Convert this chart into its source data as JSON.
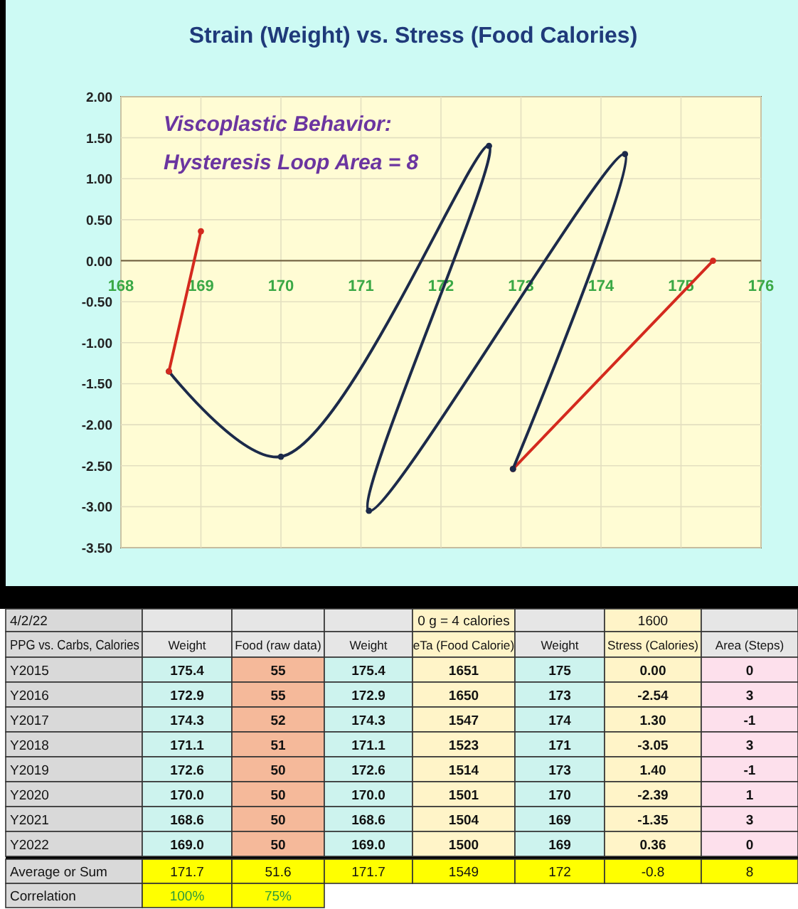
{
  "chart_data": [
    {
      "type": "line",
      "title": "Strain (Weight) vs. Stress (Food Calories)",
      "annotations": [
        "Viscoplastic Behavior:",
        "Hysteresis Loop Area = 8"
      ],
      "series": [
        {
          "color": "#d42a1e",
          "x": [
            175.4,
            172.9
          ],
          "values": [
            0.0,
            -2.54
          ]
        },
        {
          "color": "#1c2a4a",
          "x": [
            172.9,
            174.3,
            171.1,
            172.6,
            170.0,
            168.6
          ],
          "values": [
            -2.54,
            1.3,
            -3.05,
            1.4,
            -2.39,
            -1.35
          ]
        },
        {
          "color": "#d42a1e",
          "x": [
            168.6,
            169.0
          ],
          "values": [
            -1.35,
            0.36
          ]
        }
      ],
      "xlim": [
        168,
        176
      ],
      "xticks": [
        168,
        169,
        170,
        171,
        172,
        173,
        174,
        175,
        176
      ],
      "ylim": [
        -3.5,
        2.0
      ],
      "yticks": [
        {
          "value": 2.0,
          "label": "2.00"
        },
        {
          "value": 1.5,
          "label": "1.50"
        },
        {
          "value": 1.0,
          "label": "1.00"
        },
        {
          "value": 0.5,
          "label": "0.50"
        },
        {
          "value": 0.0,
          "label": "0.00"
        },
        {
          "value": -0.5,
          "label": "-0.50"
        },
        {
          "value": -1.0,
          "label": "-1.00"
        },
        {
          "value": -1.5,
          "label": "-1.50"
        },
        {
          "value": -2.0,
          "label": "-2.00"
        },
        {
          "value": -2.5,
          "label": "-2.50"
        },
        {
          "value": -3.0,
          "label": "-3.00"
        },
        {
          "value": -3.5,
          "label": "-3.50"
        }
      ],
      "grid": true,
      "marker": "circle",
      "line_style": "solid"
    },
    {
      "type": "other",
      "annotations": [
        "4/2/22",
        "0 g = 4 calories",
        "1600",
        "PPG vs. Carbs, Calories",
        "Weight",
        "Food (raw data)",
        "Weight",
        "eTa (Food Calorie)",
        "Weight",
        "Stress (Calories)",
        "Area (Steps)",
        "Y2015",
        "175.4",
        "55",
        "175.4",
        "1651",
        "175",
        "0.00",
        "0",
        "Y2016",
        "172.9",
        "55",
        "172.9",
        "1650",
        "173",
        "-2.54",
        "3",
        "Y2017",
        "174.3",
        "52",
        "174.3",
        "1547",
        "174",
        "1.30",
        "-1",
        "Y2018",
        "171.1",
        "51",
        "171.1",
        "1523",
        "171",
        "-3.05",
        "3",
        "Y2019",
        "172.6",
        "50",
        "172.6",
        "1514",
        "173",
        "1.40",
        "-1",
        "Y2020",
        "170.0",
        "50",
        "170.0",
        "1501",
        "170",
        "-2.39",
        "1",
        "Y2021",
        "168.6",
        "50",
        "168.6",
        "1504",
        "169",
        "-1.35",
        "3",
        "Y2022",
        "169.0",
        "50",
        "169.0",
        "1500",
        "169",
        "0.36",
        "0",
        "Average or Sum",
        "171.7",
        "51.6",
        "171.7",
        "1549",
        "172",
        "-0.8",
        "8",
        "Correlation",
        "100%",
        "75%"
      ]
    }
  ]
}
